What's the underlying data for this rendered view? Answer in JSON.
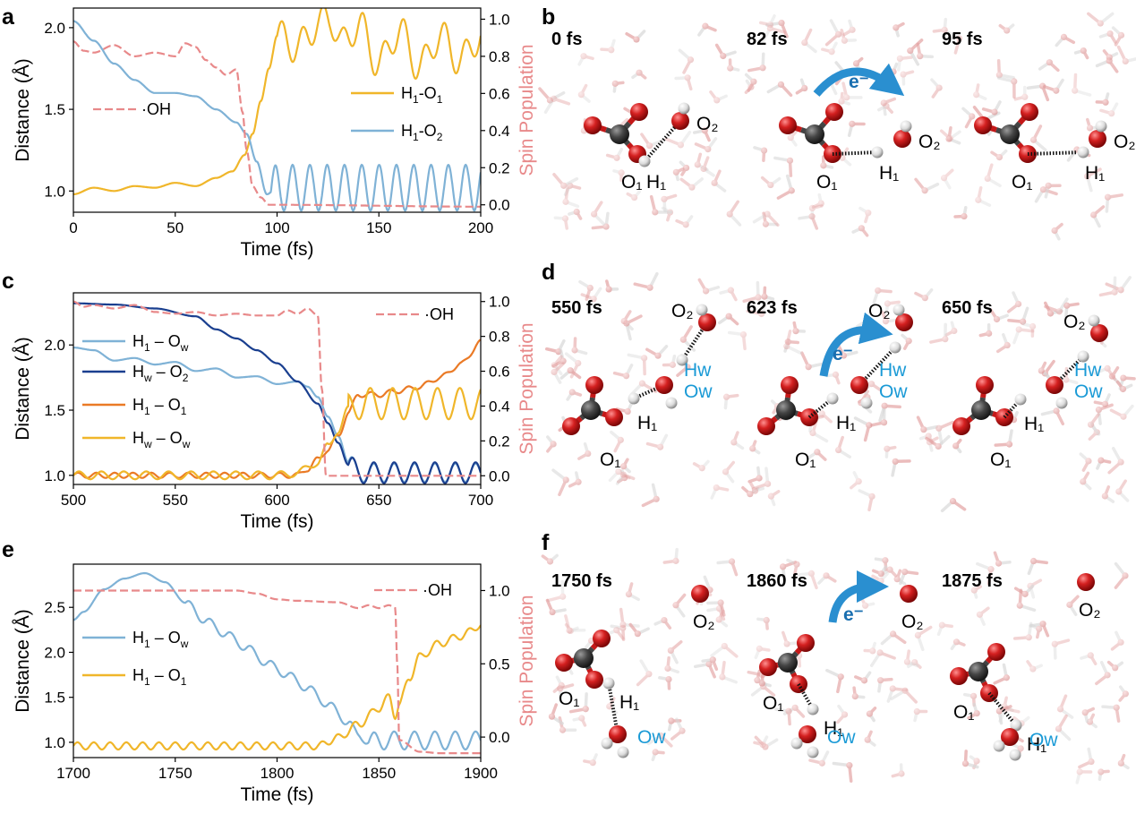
{
  "panels": {
    "a": "a",
    "b": "b",
    "c": "c",
    "d": "d",
    "e": "e",
    "f": "f"
  },
  "colors": {
    "h1_o1": "#f0b62a",
    "h1_o2": "#7fb2d6",
    "h1_ow": "#7fb2d6",
    "hw_o2": "#1a3f8f",
    "h1_o1_orange": "#ea7a26",
    "hw_ow": "#f0b62a",
    "spin": "#e8898a",
    "spin_axis": "#e8898a",
    "label_blue": "#1a9ad6",
    "oxygen": "#c41818",
    "carbon": "#3b3b3b",
    "hydrogen": "#e8e8e8"
  },
  "chart_data": [
    {
      "id": "a",
      "type": "line",
      "xlabel": "Time (fs)",
      "ylabel": "Distance (Å)",
      "y2label": "Spin Population",
      "xlim": [
        0,
        200
      ],
      "ylim": [
        0.87,
        2.12
      ],
      "y2lim": [
        -0.04,
        1.06
      ],
      "xticks": [
        0,
        50,
        100,
        150,
        200
      ],
      "yticks": [
        1.0,
        1.5,
        2.0
      ],
      "y2ticks": [
        0.0,
        0.2,
        0.4,
        0.6,
        0.8,
        1.0
      ],
      "legend_top": "top-right",
      "legend_spin": "left",
      "series": [
        {
          "name": "H1-O1",
          "name_main": "H",
          "name_sub1": "1",
          "name_mid": "-O",
          "name_sub2": "1",
          "axis": "left",
          "style": "solid",
          "x": [
            0,
            10,
            20,
            30,
            40,
            50,
            60,
            70,
            78,
            84,
            88,
            92,
            96,
            100,
            110,
            120,
            126,
            132,
            140,
            150,
            160,
            170,
            180,
            190,
            200
          ],
          "y": [
            0.98,
            1.02,
            1.0,
            1.03,
            1.02,
            1.05,
            1.03,
            1.08,
            1.12,
            1.22,
            1.35,
            1.55,
            1.75,
            1.95,
            1.88,
            2.02,
            2.06,
            1.9,
            2.02,
            1.78,
            1.98,
            1.76,
            1.95,
            1.8,
            1.95
          ],
          "osc": {
            "from": 100,
            "period": 10,
            "amp": 0.1
          }
        },
        {
          "name": "H1-O2",
          "name_main": "H",
          "name_sub1": "1",
          "name_mid": "-O",
          "name_sub2": "2",
          "axis": "left",
          "style": "solid",
          "x": [
            0,
            10,
            20,
            30,
            40,
            50,
            60,
            70,
            80,
            85,
            90,
            95,
            100,
            200
          ],
          "y": [
            2.04,
            1.92,
            1.78,
            1.68,
            1.6,
            1.6,
            1.58,
            1.5,
            1.42,
            1.35,
            1.18,
            0.98,
            1.02,
            1.02
          ],
          "osc": {
            "from": 97,
            "period": 8.5,
            "amp": 0.14
          }
        },
        {
          "name": "·OH",
          "axis": "right",
          "style": "dashed",
          "x": [
            0,
            5,
            10,
            20,
            30,
            40,
            50,
            55,
            60,
            65,
            70,
            75,
            80,
            83,
            85,
            88,
            92,
            96,
            100,
            200
          ],
          "y": [
            0.88,
            0.83,
            0.82,
            0.86,
            0.8,
            0.82,
            0.8,
            0.87,
            0.85,
            0.78,
            0.74,
            0.7,
            0.73,
            0.5,
            0.3,
            0.1,
            0.04,
            0.0,
            0.0,
            -0.01
          ]
        }
      ]
    },
    {
      "id": "c",
      "type": "line",
      "xlabel": "Time (fs)",
      "ylabel": "Distance (Å)",
      "y2label": "Spin Population",
      "xlim": [
        500,
        700
      ],
      "ylim": [
        0.93,
        2.4
      ],
      "y2lim": [
        -0.05,
        1.05
      ],
      "xticks": [
        500,
        550,
        600,
        650,
        700
      ],
      "yticks": [
        1.0,
        1.5,
        2.0
      ],
      "y2ticks": [
        0.0,
        0.2,
        0.4,
        0.6,
        0.8,
        1.0
      ],
      "legend_top": "top-right",
      "legend_main": "left",
      "series": [
        {
          "name": "H1 – Ow",
          "name_main": "H",
          "name_sub1": "1",
          "name_mid": " – O",
          "name_sub2": "w",
          "axis": "left",
          "style": "solid",
          "x": [
            500,
            510,
            520,
            530,
            540,
            550,
            560,
            570,
            580,
            590,
            600,
            610,
            615,
            620,
            625,
            630,
            635,
            640,
            700
          ],
          "y": [
            1.98,
            1.96,
            1.88,
            1.9,
            1.85,
            1.87,
            1.8,
            1.82,
            1.75,
            1.76,
            1.7,
            1.72,
            1.68,
            1.6,
            1.45,
            1.3,
            1.1,
            1.02,
            1.02
          ],
          "osc": {
            "from": 635,
            "period": 10,
            "amp": 0.07
          }
        },
        {
          "name": "Hw – O2",
          "name_main": "H",
          "name_sub1": "w",
          "name_mid": " – O",
          "name_sub2": "2",
          "axis": "left",
          "style": "solid",
          "x": [
            500,
            520,
            540,
            560,
            570,
            580,
            590,
            600,
            610,
            620,
            625,
            630,
            635,
            640,
            700
          ],
          "y": [
            2.32,
            2.31,
            2.28,
            2.22,
            2.12,
            2.05,
            1.96,
            1.86,
            1.72,
            1.55,
            1.4,
            1.25,
            1.08,
            1.02,
            1.02
          ],
          "osc": {
            "from": 635,
            "period": 10,
            "amp": 0.08
          }
        },
        {
          "name": "H1 – O1",
          "name_main": "H",
          "name_sub1": "1",
          "name_mid": " – O",
          "name_sub2": "1",
          "axis": "left",
          "style": "solid",
          "x": [
            500,
            610,
            615,
            620,
            625,
            630,
            635,
            640,
            650,
            660,
            670,
            680,
            690,
            700
          ],
          "y": [
            1.0,
            1.0,
            1.05,
            1.12,
            1.2,
            1.3,
            1.48,
            1.62,
            1.62,
            1.65,
            1.68,
            1.75,
            1.85,
            2.02
          ],
          "osc": {
            "from": 500,
            "period": 9,
            "amp": 0.02
          }
        },
        {
          "name": "Hw – Ow",
          "name_main": "H",
          "name_sub1": "w",
          "name_mid": " – O",
          "name_sub2": "w",
          "axis": "left",
          "style": "solid",
          "x": [
            500,
            600,
            610,
            620,
            625,
            630,
            635,
            640,
            700
          ],
          "y": [
            1.0,
            1.0,
            1.02,
            1.1,
            1.22,
            1.35,
            1.5,
            1.55,
            1.55
          ],
          "osc": {
            "from": 500,
            "period": 11,
            "amp": 0.03,
            "amp2_from": 635,
            "amp2": 0.12
          }
        },
        {
          "name": "·OH",
          "axis": "right",
          "style": "dashed",
          "x": [
            500,
            505,
            510,
            520,
            530,
            540,
            550,
            560,
            570,
            580,
            590,
            600,
            605,
            610,
            615,
            620,
            622,
            624,
            700
          ],
          "y": [
            1.0,
            0.97,
            0.98,
            0.96,
            0.98,
            0.94,
            0.93,
            0.94,
            0.92,
            0.93,
            0.92,
            0.92,
            0.95,
            0.93,
            0.96,
            0.92,
            0.5,
            0.0,
            0.0
          ]
        }
      ]
    },
    {
      "id": "e",
      "type": "line",
      "xlabel": "Time (fs)",
      "ylabel": "Distance (Å)",
      "y2label": "Spin Population",
      "xlim": [
        1700,
        1900
      ],
      "ylim": [
        0.83,
        2.98
      ],
      "y2lim": [
        -0.14,
        1.18
      ],
      "xticks": [
        1700,
        1750,
        1800,
        1850,
        1900
      ],
      "yticks": [
        1.0,
        1.5,
        2.0,
        2.5
      ],
      "y2ticks": [
        0.0,
        0.5,
        1.0
      ],
      "legend_top": "top-right",
      "legend_main": "left",
      "series": [
        {
          "name": "H1 – Ow",
          "name_main": "H",
          "name_sub1": "1",
          "name_mid": " – O",
          "name_sub2": "w",
          "axis": "left",
          "style": "solid",
          "x": [
            1700,
            1705,
            1715,
            1725,
            1735,
            1745,
            1755,
            1765,
            1775,
            1785,
            1795,
            1805,
            1815,
            1825,
            1835,
            1840,
            1845,
            1850,
            1900
          ],
          "y": [
            2.36,
            2.45,
            2.7,
            2.82,
            2.88,
            2.78,
            2.55,
            2.35,
            2.2,
            2.05,
            1.88,
            1.75,
            1.6,
            1.42,
            1.22,
            1.08,
            1.0,
            1.02,
            1.02
          ],
          "osc": {
            "from": 1755,
            "period": 10,
            "amp": 0.04,
            "amp2_from": 1845,
            "amp2": 0.1
          }
        },
        {
          "name": "H1 – O1",
          "name_main": "H",
          "name_sub1": "1",
          "name_mid": " – O",
          "name_sub2": "1",
          "axis": "left",
          "style": "solid",
          "x": [
            1700,
            1820,
            1830,
            1840,
            1850,
            1855,
            1858,
            1860,
            1865,
            1870,
            1880,
            1890,
            1900
          ],
          "y": [
            0.96,
            0.96,
            1.05,
            1.2,
            1.38,
            1.5,
            1.3,
            1.42,
            1.72,
            1.95,
            2.1,
            2.18,
            2.3
          ],
          "osc": {
            "from": 1700,
            "period": 8,
            "amp": 0.04
          }
        },
        {
          "name": "·OH",
          "axis": "right",
          "style": "dashed",
          "x": [
            1700,
            1780,
            1790,
            1800,
            1810,
            1830,
            1840,
            1845,
            1850,
            1855,
            1858,
            1859,
            1860,
            1870,
            1880,
            1900
          ],
          "y": [
            1.0,
            1.0,
            0.98,
            0.94,
            0.93,
            0.92,
            0.88,
            0.9,
            0.88,
            0.9,
            0.88,
            0.5,
            -0.02,
            -0.1,
            -0.11,
            -0.11
          ]
        }
      ]
    }
  ],
  "snapshots": {
    "b": [
      {
        "time": "0 fs",
        "labels": {
          "o1": "O₁",
          "h1": "H₁",
          "o2": "O₂"
        }
      },
      {
        "time": "82 fs",
        "labels": {
          "o1": "O₁",
          "h1": "H₁",
          "o2": "O₂",
          "e": "e⁻"
        }
      },
      {
        "time": "95 fs",
        "labels": {
          "o1": "O₁",
          "h1": "H₁",
          "o2": "O₂"
        }
      }
    ],
    "d": [
      {
        "time": "550 fs",
        "labels": {
          "o1": "O₁",
          "h1": "H₁",
          "o2": "O₂",
          "hw": "Hw",
          "ow": "Ow"
        }
      },
      {
        "time": "623 fs",
        "labels": {
          "o1": "O₁",
          "h1": "H₁",
          "o2": "O₂",
          "hw": "Hw",
          "ow": "Ow",
          "e": "e⁻"
        }
      },
      {
        "time": "650 fs",
        "labels": {
          "o1": "O₁",
          "h1": "H₁",
          "o2": "O₂",
          "hw": "Hw",
          "ow": "Ow"
        }
      }
    ],
    "f": [
      {
        "time": "1750 fs",
        "labels": {
          "o1": "O₁",
          "h1": "H₁",
          "o2": "O₂",
          "ow": "Ow"
        }
      },
      {
        "time": "1860 fs",
        "labels": {
          "o1": "O₁",
          "h1": "H₁",
          "o2": "O₂",
          "ow": "Ow",
          "e": "e⁻"
        }
      },
      {
        "time": "1875 fs",
        "labels": {
          "o1": "O₁",
          "h1": "H₁",
          "o2": "O₂",
          "ow": "Ow"
        }
      }
    ]
  }
}
